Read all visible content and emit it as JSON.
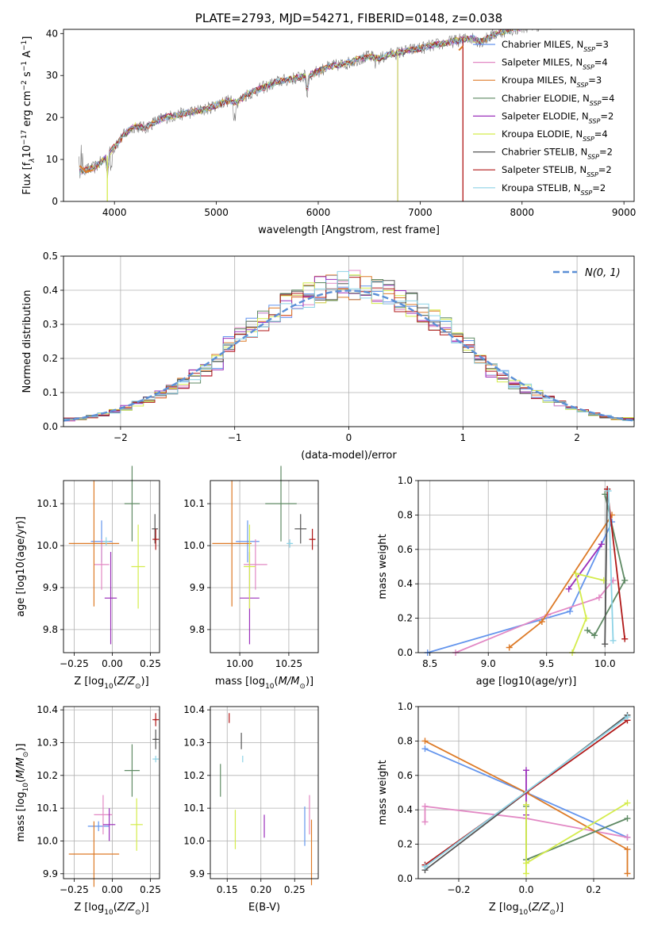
{
  "figure": {
    "title": "PLATE=2793, MJD=54271, FIBERID=0148, z=0.038"
  },
  "model_colors": {
    "Chabrier MILES": "#6495ed",
    "Salpeter MILES": "#e288c4",
    "Kroupa MILES": "#dd7a27",
    "Chabrier ELODIE": "#5f8a64",
    "Salpeter ELODIE": "#9b30bb",
    "Kroupa ELODIE": "#d4ec4c",
    "Chabrier STELIB": "#555555",
    "Salpeter STELIB": "#b01818",
    "Kroupa STELIB": "#8ed3e6"
  },
  "chart_data": [
    {
      "id": "spectrum",
      "type": "line",
      "title": "PLATE=2793, MJD=54271, FIBERID=0148, z=0.038",
      "xlabel": "wavelength [Angstrom, rest frame]",
      "ylabel_parts": [
        "Flux [f",
        "λ",
        "10",
        "−17",
        " erg cm",
        "−2",
        " s",
        "−1",
        " A",
        "−1",
        "]"
      ],
      "xlim": [
        3500,
        9100
      ],
      "ylim": [
        0,
        41
      ],
      "xticks": [
        4000,
        5000,
        6000,
        7000,
        8000,
        9000
      ],
      "yticks": [
        0,
        10,
        20,
        30,
        40
      ],
      "grid": false,
      "legend_position": "right",
      "series": [
        {
          "base": "Chabrier MILES, N",
          "sub": "SSP",
          "suffix": "=3",
          "color": "#6495ed"
        },
        {
          "base": "Salpeter MILES, N",
          "sub": "SSP",
          "suffix": "=4",
          "color": "#e288c4"
        },
        {
          "base": "Kroupa MILES, N",
          "sub": "SSP",
          "suffix": "=3",
          "color": "#dd7a27"
        },
        {
          "base": "Chabrier ELODIE, N",
          "sub": "SSP",
          "suffix": "=4",
          "color": "#5f8a64"
        },
        {
          "base": "Salpeter ELODIE, N",
          "sub": "SSP",
          "suffix": "=2",
          "color": "#9b30bb"
        },
        {
          "base": "Kroupa ELODIE, N",
          "sub": "SSP",
          "suffix": "=4",
          "color": "#d4ec4c"
        },
        {
          "base": "Chabrier STELIB, N",
          "sub": "SSP",
          "suffix": "=2",
          "color": "#555555"
        },
        {
          "base": "Salpeter STELIB, N",
          "sub": "SSP",
          "suffix": "=2",
          "color": "#b01818"
        },
        {
          "base": "Kroupa STELIB, N",
          "sub": "SSP",
          "suffix": "=2",
          "color": "#8ed3e6"
        }
      ],
      "continuum": [
        [
          3650,
          7
        ],
        [
          3800,
          8
        ],
        [
          3900,
          10
        ],
        [
          4000,
          13
        ],
        [
          4100,
          16
        ],
        [
          4200,
          18
        ],
        [
          4300,
          17.5
        ],
        [
          4400,
          19
        ],
        [
          4500,
          20
        ],
        [
          4600,
          20.5
        ],
        [
          4700,
          21
        ],
        [
          4800,
          21.5
        ],
        [
          4900,
          22
        ],
        [
          5000,
          23
        ],
        [
          5100,
          24
        ],
        [
          5200,
          23.5
        ],
        [
          5300,
          25.5
        ],
        [
          5400,
          26.5
        ],
        [
          5500,
          27.5
        ],
        [
          5600,
          28.5
        ],
        [
          5700,
          29
        ],
        [
          5800,
          29.5
        ],
        [
          5900,
          30
        ],
        [
          6000,
          31
        ],
        [
          6100,
          32
        ],
        [
          6200,
          32.5
        ],
        [
          6300,
          33
        ],
        [
          6400,
          34
        ],
        [
          6500,
          34.5
        ],
        [
          6600,
          34
        ],
        [
          6700,
          35
        ],
        [
          6800,
          35.5
        ],
        [
          6900,
          36
        ],
        [
          7000,
          36.5
        ],
        [
          7100,
          37
        ],
        [
          7200,
          37.5
        ],
        [
          7300,
          38
        ],
        [
          7400,
          38.5
        ],
        [
          7500,
          39
        ],
        [
          7600,
          38
        ],
        [
          7700,
          39.5
        ],
        [
          7800,
          40.5
        ],
        [
          7900,
          41
        ],
        [
          8000,
          41.5
        ],
        [
          8100,
          42
        ],
        [
          8200,
          42
        ],
        [
          8300,
          42.5
        ],
        [
          8400,
          42.5
        ],
        [
          8500,
          43
        ]
      ],
      "dropouts": [
        {
          "x": 3930,
          "color": "#d4ec4c"
        },
        {
          "x": 6780,
          "color": "#c9cc68"
        },
        {
          "x": 7420,
          "color": "#b01818"
        }
      ]
    },
    {
      "id": "residuals",
      "type": "line",
      "xlabel": "(data-model)/error",
      "ylabel": "Normed distribution",
      "xlim": [
        -2.5,
        2.5
      ],
      "ylim": [
        0,
        0.5
      ],
      "xticks": [
        -2,
        -1,
        0,
        1,
        2
      ],
      "yticks": [
        0.0,
        0.1,
        0.2,
        0.3,
        0.4,
        0.5
      ],
      "grid": true,
      "legend_position": "top-right",
      "legend": "N(0, 1)",
      "bin_width": 0.1,
      "reference_curve": {
        "name": "N(0,1)",
        "mean": 0,
        "sigma": 1,
        "color": "#5b8fd6"
      }
    },
    {
      "id": "age-vs-Z",
      "type": "scatter",
      "xlabel_parts": [
        "Z [log",
        "10",
        "(",
        "Z/Z",
        "⊙",
        ")]"
      ],
      "ylabel_parts": [
        "age  [log",
        "10",
        "(",
        "age/yr",
        ")]"
      ],
      "xlim": [
        -0.32,
        0.31
      ],
      "ylim": [
        9.745,
        10.155
      ],
      "xticks": [
        -0.25,
        0.0,
        0.25
      ],
      "yticks": [
        9.8,
        9.9,
        10.0,
        10.1
      ],
      "grid": true,
      "points": [
        {
          "x": -0.07,
          "y": 10.01,
          "xerr": 0.07,
          "yerr": 0.05,
          "color": "#6495ed"
        },
        {
          "x": -0.07,
          "y": 9.955,
          "xerr": 0.05,
          "yerr": 0.06,
          "color": "#e288c4"
        },
        {
          "x": -0.12,
          "y": 10.005,
          "xerr": 0.165,
          "yerr": 0.15,
          "color": "#dd7a27"
        },
        {
          "x": 0.13,
          "y": 10.1,
          "xerr": 0.05,
          "yerr": 0.09,
          "color": "#5f8a64"
        },
        {
          "x": -0.01,
          "y": 9.875,
          "xerr": 0.04,
          "yerr": 0.11,
          "color": "#9b30bb"
        },
        {
          "x": 0.17,
          "y": 9.95,
          "xerr": 0.045,
          "yerr": 0.1,
          "color": "#d4ec4c"
        },
        {
          "x": 0.28,
          "y": 10.04,
          "xerr": 0.02,
          "yerr": 0.035,
          "color": "#555555"
        },
        {
          "x": 0.285,
          "y": 10.015,
          "xerr": 0.01,
          "yerr": 0.025,
          "color": "#b01818"
        },
        {
          "x": -0.04,
          "y": 10.01,
          "xerr": 0.01,
          "yerr": 0.01,
          "color": "#8ed3e6"
        }
      ]
    },
    {
      "id": "age-vs-mass",
      "type": "scatter",
      "xlabel_parts": [
        "mass [log",
        "10",
        "(",
        "M/M",
        "⊙",
        ")]"
      ],
      "xlim": [
        9.85,
        10.4
      ],
      "ylim": [
        9.745,
        10.155
      ],
      "xticks": [
        10.0,
        10.25
      ],
      "yticks": [
        9.8,
        9.9,
        10.0,
        10.1
      ],
      "grid": true,
      "points": [
        {
          "x": 10.04,
          "y": 10.01,
          "xerr": 0.06,
          "yerr": 0.05,
          "color": "#6495ed"
        },
        {
          "x": 10.08,
          "y": 9.955,
          "xerr": 0.06,
          "yerr": 0.06,
          "color": "#e288c4"
        },
        {
          "x": 9.96,
          "y": 10.005,
          "xerr": 0.1,
          "yerr": 0.15,
          "color": "#dd7a27"
        },
        {
          "x": 10.21,
          "y": 10.1,
          "xerr": 0.08,
          "yerr": 0.09,
          "color": "#5f8a64"
        },
        {
          "x": 10.05,
          "y": 9.875,
          "xerr": 0.05,
          "yerr": 0.11,
          "color": "#9b30bb"
        },
        {
          "x": 10.05,
          "y": 9.95,
          "xerr": 0.03,
          "yerr": 0.1,
          "color": "#d4ec4c"
        },
        {
          "x": 10.31,
          "y": 10.04,
          "xerr": 0.03,
          "yerr": 0.035,
          "color": "#555555"
        },
        {
          "x": 10.37,
          "y": 10.015,
          "xerr": 0.015,
          "yerr": 0.025,
          "color": "#b01818"
        },
        {
          "x": 10.255,
          "y": 10.005,
          "xerr": 0.01,
          "yerr": 0.01,
          "color": "#8ed3e6"
        }
      ]
    },
    {
      "id": "weight-vs-age",
      "type": "line",
      "xlabel_parts": [
        "age  [log",
        "10",
        "(",
        "age/yr",
        ")]"
      ],
      "ylabel": "mass weight",
      "xlim": [
        8.4,
        10.25
      ],
      "ylim": [
        0,
        1.0
      ],
      "xticks": [
        8.5,
        9.0,
        9.5,
        10.0
      ],
      "yticks": [
        0.0,
        0.2,
        0.4,
        0.6,
        0.8,
        1.0
      ],
      "grid": true,
      "series": [
        {
          "color": "#6495ed",
          "points": [
            [
              8.48,
              0.0
            ],
            [
              9.7,
              0.24
            ],
            [
              10.06,
              0.76
            ]
          ]
        },
        {
          "color": "#e288c4",
          "points": [
            [
              8.72,
              0.0
            ],
            [
              9.51,
              0.22
            ],
            [
              9.95,
              0.32
            ],
            [
              10.07,
              0.42
            ]
          ]
        },
        {
          "color": "#dd7a27",
          "points": [
            [
              9.18,
              0.03
            ],
            [
              9.46,
              0.18
            ],
            [
              10.06,
              0.8
            ]
          ]
        },
        {
          "color": "#5f8a64",
          "points": [
            [
              9.85,
              0.13
            ],
            [
              9.91,
              0.1
            ],
            [
              10.17,
              0.42
            ],
            [
              10.0,
              0.92
            ]
          ]
        },
        {
          "color": "#9b30bb",
          "points": [
            [
              9.69,
              0.37
            ],
            [
              9.97,
              0.63
            ]
          ]
        },
        {
          "color": "#d4ec4c",
          "points": [
            [
              9.72,
              0.0
            ],
            [
              9.84,
              0.2
            ],
            [
              9.75,
              0.46
            ],
            [
              9.99,
              0.42
            ]
          ]
        },
        {
          "color": "#555555",
          "points": [
            [
              10.0,
              0.05
            ],
            [
              10.02,
              0.95
            ]
          ]
        },
        {
          "color": "#b01818",
          "points": [
            [
              10.02,
              0.95
            ],
            [
              10.17,
              0.08
            ]
          ]
        },
        {
          "color": "#8ed3e6",
          "points": [
            [
              10.07,
              0.07
            ],
            [
              10.03,
              0.94
            ]
          ]
        }
      ]
    },
    {
      "id": "mass-vs-Z",
      "type": "scatter",
      "xlabel_parts": [
        "Z [log",
        "10",
        "(",
        "Z/Z",
        "⊙",
        ")]"
      ],
      "ylabel_parts": [
        "mass [log",
        "10",
        "(",
        "M/M",
        "⊙",
        ")]"
      ],
      "xlim": [
        -0.32,
        0.31
      ],
      "ylim": [
        9.885,
        10.41
      ],
      "xticks": [
        -0.25,
        0.0,
        0.25
      ],
      "yticks": [
        9.9,
        10.0,
        10.1,
        10.2,
        10.3,
        10.4
      ],
      "grid": true,
      "points": [
        {
          "x": -0.09,
          "y": 10.045,
          "xerr": 0.07,
          "yerr": 0.015,
          "color": "#6495ed"
        },
        {
          "x": -0.06,
          "y": 10.08,
          "xerr": 0.06,
          "yerr": 0.06,
          "color": "#e288c4"
        },
        {
          "x": -0.12,
          "y": 9.96,
          "xerr": 0.165,
          "yerr": 0.1,
          "color": "#dd7a27"
        },
        {
          "x": 0.13,
          "y": 10.215,
          "xerr": 0.05,
          "yerr": 0.08,
          "color": "#5f8a64"
        },
        {
          "x": -0.02,
          "y": 10.05,
          "xerr": 0.04,
          "yerr": 0.05,
          "color": "#9b30bb"
        },
        {
          "x": 0.16,
          "y": 10.05,
          "xerr": 0.04,
          "yerr": 0.08,
          "color": "#d4ec4c"
        },
        {
          "x": 0.285,
          "y": 10.31,
          "xerr": 0.01,
          "yerr": 0.03,
          "color": "#555555"
        },
        {
          "x": 0.285,
          "y": 10.37,
          "xerr": 0.01,
          "yerr": 0.02,
          "color": "#b01818"
        },
        {
          "x": 0.285,
          "y": 10.25,
          "xerr": 0.005,
          "yerr": 0.01,
          "color": "#8ed3e6"
        }
      ]
    },
    {
      "id": "mass-vs-EBV",
      "type": "scatter",
      "xlabel": "E(B-V)",
      "xlim": [
        0.125,
        0.285
      ],
      "ylim": [
        9.885,
        10.41
      ],
      "xticks": [
        0.15,
        0.2,
        0.25
      ],
      "yticks": [
        9.9,
        10.0,
        10.1,
        10.2,
        10.3,
        10.4
      ],
      "grid": true,
      "points": [
        {
          "x": 0.265,
          "y": 10.045,
          "xerr": 0.0,
          "yerr": 0.06,
          "color": "#6495ed"
        },
        {
          "x": 0.272,
          "y": 10.08,
          "xerr": 0.0,
          "yerr": 0.06,
          "color": "#e288c4"
        },
        {
          "x": 0.275,
          "y": 9.965,
          "xerr": 0.0,
          "yerr": 0.1,
          "color": "#dd7a27"
        },
        {
          "x": 0.14,
          "y": 10.185,
          "xerr": 0.0,
          "yerr": 0.05,
          "color": "#5f8a64"
        },
        {
          "x": 0.205,
          "y": 10.045,
          "xerr": 0.0,
          "yerr": 0.035,
          "color": "#9b30bb"
        },
        {
          "x": 0.162,
          "y": 10.035,
          "xerr": 0.0,
          "yerr": 0.06,
          "color": "#d4ec4c"
        },
        {
          "x": 0.171,
          "y": 10.305,
          "xerr": 0.0,
          "yerr": 0.025,
          "color": "#555555"
        },
        {
          "x": 0.153,
          "y": 10.375,
          "xerr": 0.0,
          "yerr": 0.015,
          "color": "#b01818"
        },
        {
          "x": 0.173,
          "y": 10.25,
          "xerr": 0.0,
          "yerr": 0.01,
          "color": "#8ed3e6"
        }
      ]
    },
    {
      "id": "weight-vs-Z",
      "type": "line",
      "xlabel_parts": [
        "Z [log",
        "10",
        "(",
        "Z/Z",
        "⊙",
        ")]"
      ],
      "ylabel": "mass weight",
      "xlim": [
        -0.32,
        0.32
      ],
      "ylim": [
        0,
        1.0
      ],
      "xticks": [
        -0.2,
        0.0,
        0.2
      ],
      "yticks": [
        0.0,
        0.2,
        0.4,
        0.6,
        0.8,
        1.0
      ],
      "grid": true,
      "series": [
        {
          "color": "#6495ed",
          "points": [
            [
              -0.3,
              0.755
            ],
            [
              0.0,
              0.5
            ],
            [
              0.3,
              0.24
            ]
          ]
        },
        {
          "color": "#e288c4",
          "points": [
            [
              -0.3,
              0.33
            ],
            [
              -0.3,
              0.42
            ],
            [
              0.0,
              0.35
            ],
            [
              0.3,
              0.24
            ]
          ]
        },
        {
          "color": "#dd7a27",
          "points": [
            [
              -0.3,
              0.8
            ],
            [
              0.0,
              0.5
            ],
            [
              0.3,
              0.17
            ],
            [
              0.3,
              0.03
            ]
          ]
        },
        {
          "color": "#5f8a64",
          "points": [
            [
              0.0,
              0.42
            ],
            [
              0.0,
              0.11
            ],
            [
              0.3,
              0.35
            ]
          ]
        },
        {
          "color": "#9b30bb",
          "points": [
            [
              0.0,
              0.37
            ],
            [
              0.0,
              0.63
            ]
          ]
        },
        {
          "color": "#d4ec4c",
          "points": [
            [
              0.0,
              0.03
            ],
            [
              0.0,
              0.43
            ],
            [
              0.0,
              0.09
            ],
            [
              0.3,
              0.44
            ]
          ]
        },
        {
          "color": "#555555",
          "points": [
            [
              -0.3,
              0.05
            ],
            [
              0.3,
              0.95
            ]
          ]
        },
        {
          "color": "#b01818",
          "points": [
            [
              -0.3,
              0.08
            ],
            [
              0.3,
              0.92
            ]
          ]
        },
        {
          "color": "#8ed3e6",
          "points": [
            [
              -0.3,
              0.07
            ],
            [
              0.3,
              0.94
            ]
          ]
        }
      ]
    }
  ]
}
